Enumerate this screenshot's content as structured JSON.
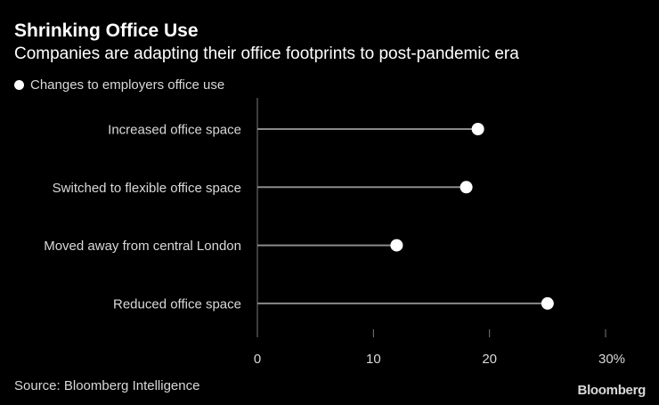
{
  "chart_data": {
    "type": "lollipop",
    "title": "Shrinking Office Use",
    "subtitle": "Companies are adapting their office footprints to post-pandemic era",
    "legend": [
      {
        "label": "Changes to employers office use",
        "color": "#ffffff"
      }
    ],
    "categories": [
      "Increased office space",
      "Switched to flexible office space",
      "Moved away from central London",
      "Reduced office space"
    ],
    "series": [
      {
        "name": "Changes to employers office use",
        "values": [
          19,
          18,
          12,
          25
        ]
      }
    ],
    "xlim": [
      0,
      30
    ],
    "xticks": [
      0,
      10,
      20,
      30
    ],
    "xtick_labels": [
      "0",
      "10",
      "20",
      "30%"
    ],
    "xlabel": "",
    "ylabel": ""
  },
  "footer": {
    "source": "Source: Bloomberg Intelligence",
    "brand": "Bloomberg"
  },
  "colors": {
    "background": "#000000",
    "marker": "#ffffff",
    "stem": "#8a8a8a",
    "axis": "#7a7a7a",
    "label": "#d9d9d9"
  }
}
